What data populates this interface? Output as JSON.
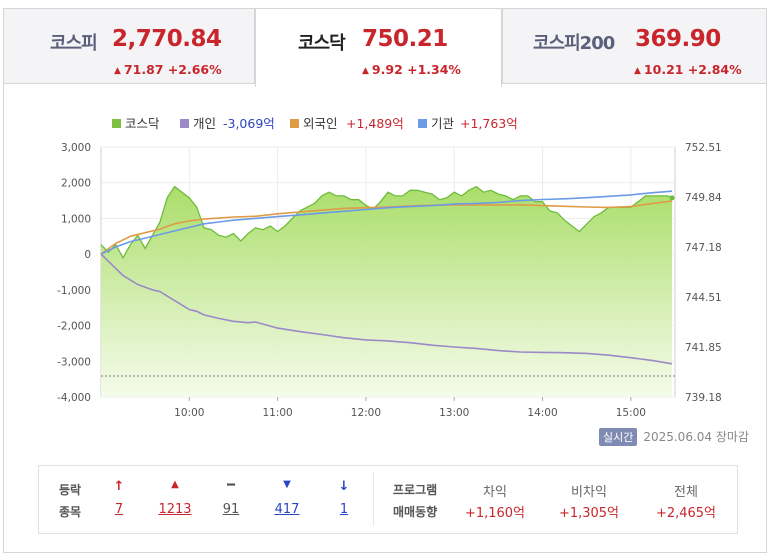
{
  "tabs": [
    {
      "name": "코스피",
      "price": "2,770.84",
      "change": "71.87 +2.66%"
    },
    {
      "name": "코스닥",
      "price": "750.21",
      "change": "9.92 +1.34%"
    },
    {
      "name": "코스피200",
      "price": "369.90",
      "change": "10.21 +2.84%"
    }
  ],
  "legend": {
    "kosdaq": "코스닥",
    "individual_label": "개인",
    "individual_value": "-3,069억",
    "foreign_label": "외국인",
    "foreign_value": "+1,489억",
    "institution_label": "기관",
    "institution_value": "+1,763억"
  },
  "colors": {
    "kosdaq_fill": "#a9dd6a",
    "kosdaq_line": "#6cbd3a",
    "individual": "#9b89c8",
    "foreign": "#e09b45",
    "institution": "#6b9be6",
    "up": "#c8262c",
    "down": "#2b44c6"
  },
  "footer": {
    "live_badge": "실시간",
    "date": "2025.06.04",
    "status": "장마감"
  },
  "stats": {
    "row1": "등락",
    "row2": "종목",
    "upper_limit": "7",
    "rise": "1213",
    "unchanged": "91",
    "fall": "417",
    "lower_limit": "1",
    "prog_label1": "프로그램",
    "prog_label2": "매매동향",
    "arb_label": "차익",
    "arb_value": "+1,160억",
    "nonarb_label": "비차익",
    "nonarb_value": "+1,305억",
    "total_label": "전체",
    "total_value": "+2,465억"
  },
  "chart_data": {
    "type": "line",
    "x_labels": [
      "10:00",
      "11:00",
      "12:00",
      "13:00",
      "14:00",
      "15:00"
    ],
    "y_left_ticks": [
      "3,000",
      "2,000",
      "1,000",
      "0",
      "-1,000",
      "-2,000",
      "-3,000",
      "-4,000"
    ],
    "y_right_ticks": [
      "752.51",
      "749.84",
      "747.18",
      "744.51",
      "741.85",
      "739.18"
    ],
    "y_left_range": [
      -4000,
      3000
    ],
    "y_right_range": [
      739.18,
      752.51
    ],
    "x_range_minutes": [
      540,
      930
    ],
    "grid": true,
    "legend_position": "top",
    "series": [
      {
        "name": "코스닥",
        "axis": "right",
        "x_min": [
          540,
          545,
          550,
          555,
          560,
          565,
          570,
          575,
          580,
          585,
          590,
          595,
          600,
          605,
          610,
          615,
          620,
          625,
          630,
          635,
          640,
          645,
          650,
          655,
          660,
          665,
          670,
          675,
          680,
          685,
          690,
          695,
          700,
          705,
          710,
          715,
          720,
          725,
          730,
          735,
          740,
          745,
          750,
          755,
          760,
          765,
          770,
          775,
          780,
          785,
          790,
          795,
          800,
          805,
          810,
          815,
          820,
          825,
          830,
          835,
          840,
          845,
          850,
          855,
          860,
          865,
          870,
          875,
          880,
          885,
          890,
          895,
          900,
          905,
          910,
          915,
          920,
          925,
          928
        ],
        "values": [
          747.3,
          746.9,
          747.3,
          746.6,
          747.3,
          747.8,
          747.1,
          747.8,
          748.5,
          749.8,
          750.4,
          750.1,
          749.8,
          749.3,
          748.2,
          748.1,
          747.8,
          747.7,
          747.9,
          747.5,
          747.9,
          748.2,
          748.1,
          748.3,
          748.0,
          748.3,
          748.7,
          749.1,
          749.3,
          749.5,
          749.9,
          750.1,
          749.9,
          749.9,
          749.7,
          749.7,
          749.4,
          749.2,
          749.6,
          750.1,
          749.9,
          749.9,
          750.2,
          750.2,
          750.1,
          750.0,
          749.7,
          749.8,
          750.1,
          749.9,
          750.2,
          750.4,
          750.1,
          750.2,
          750.0,
          749.9,
          749.7,
          749.9,
          749.9,
          749.6,
          749.6,
          749.1,
          749.0,
          748.6,
          748.3,
          748.0,
          748.4,
          748.8,
          749.0,
          749.3,
          749.3,
          749.3,
          749.3,
          749.6,
          749.9,
          749.9,
          749.9,
          749.9,
          749.8
        ]
      },
      {
        "name": "개인",
        "axis": "left",
        "x_min": [
          540,
          555,
          565,
          575,
          580,
          590,
          600,
          605,
          610,
          620,
          630,
          640,
          645,
          660,
          675,
          690,
          705,
          720,
          735,
          750,
          765,
          780,
          795,
          810,
          825,
          840,
          855,
          870,
          885,
          900,
          915,
          928
        ],
        "values": [
          0,
          -600,
          -850,
          -1000,
          -1050,
          -1300,
          -1550,
          -1600,
          -1700,
          -1800,
          -1880,
          -1920,
          -1900,
          -2070,
          -2170,
          -2250,
          -2340,
          -2400,
          -2430,
          -2480,
          -2550,
          -2600,
          -2640,
          -2700,
          -2740,
          -2750,
          -2760,
          -2780,
          -2830,
          -2900,
          -2980,
          -3069
        ]
      },
      {
        "name": "외국인",
        "axis": "left",
        "x_min": [
          540,
          550,
          560,
          570,
          580,
          590,
          600,
          610,
          620,
          630,
          645,
          660,
          675,
          690,
          705,
          720,
          735,
          750,
          765,
          780,
          795,
          810,
          825,
          840,
          855,
          870,
          885,
          900,
          915,
          928
        ],
        "values": [
          0,
          300,
          500,
          600,
          700,
          850,
          930,
          980,
          1010,
          1040,
          1060,
          1130,
          1180,
          1230,
          1280,
          1300,
          1320,
          1350,
          1370,
          1380,
          1380,
          1380,
          1380,
          1360,
          1340,
          1320,
          1310,
          1330,
          1420,
          1489
        ]
      },
      {
        "name": "기관",
        "axis": "left",
        "x_min": [
          540,
          550,
          560,
          570,
          580,
          590,
          600,
          610,
          620,
          630,
          645,
          660,
          675,
          690,
          705,
          720,
          735,
          750,
          765,
          780,
          795,
          810,
          825,
          840,
          855,
          870,
          885,
          900,
          915,
          928
        ],
        "values": [
          0,
          200,
          350,
          450,
          550,
          650,
          750,
          850,
          900,
          950,
          1000,
          1050,
          1100,
          1150,
          1200,
          1250,
          1300,
          1330,
          1360,
          1400,
          1420,
          1450,
          1500,
          1530,
          1550,
          1580,
          1620,
          1660,
          1720,
          1763
        ]
      }
    ]
  }
}
